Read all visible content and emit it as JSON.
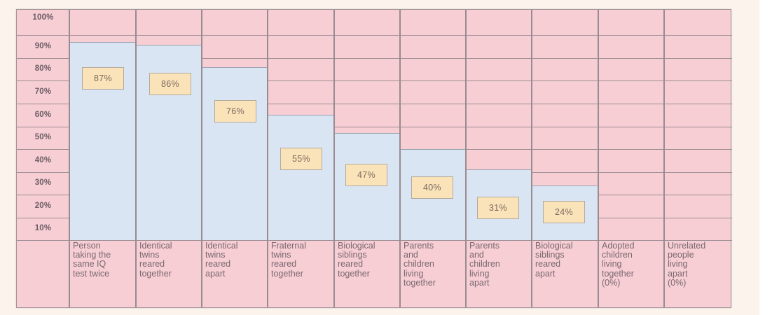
{
  "chart_data": {
    "type": "bar",
    "title": "",
    "xlabel": "",
    "ylabel": "",
    "ylim": [
      0,
      100
    ],
    "grid": true,
    "y_ticks": [
      "100%",
      "90%",
      "80%",
      "70%",
      "60%",
      "50%",
      "40%",
      "30%",
      "20%",
      "10%"
    ],
    "categories": [
      "Person taking the same IQ test twice",
      "Identical twins reared together",
      "Identical twins reared apart",
      "Fraternal twins reared together",
      "Biological siblings reared together",
      "Parents and children living together",
      "Parents and children living apart",
      "Biological siblings reared apart",
      "Adopted children living together (0%)",
      "Unrelated people living apart (0%)"
    ],
    "category_lines": [
      "Person\ntaking the\nsame IQ\ntest twice",
      "Identical\ntwins\nreared\ntogether",
      "Identical\ntwins\nreared\napart",
      "Fraternal\ntwins\nreared\ntogether",
      "Biological\nsiblings\nreared\ntogether",
      "Parents\nand\nchildren\nliving\ntogether",
      "Parents\nand\nchildren\nliving\napart",
      "Biological\nsiblings\nreared\napart",
      "Adopted\nchildren\nliving\ntogether\n(0%)",
      "Unrelated\npeople\nliving\napart\n(0%)"
    ],
    "values": [
      87,
      86,
      76,
      55,
      47,
      40,
      31,
      24,
      0,
      0
    ],
    "value_labels": [
      "87%",
      "86%",
      "76%",
      "55%",
      "47%",
      "40%",
      "31%",
      "24%",
      "",
      ""
    ],
    "colors": {
      "background": "#f6ced4",
      "bar": "#dae5f4",
      "label_box": "#fbe3b9",
      "gridline": "#9e8f95",
      "page": "#fcf4ec"
    }
  }
}
